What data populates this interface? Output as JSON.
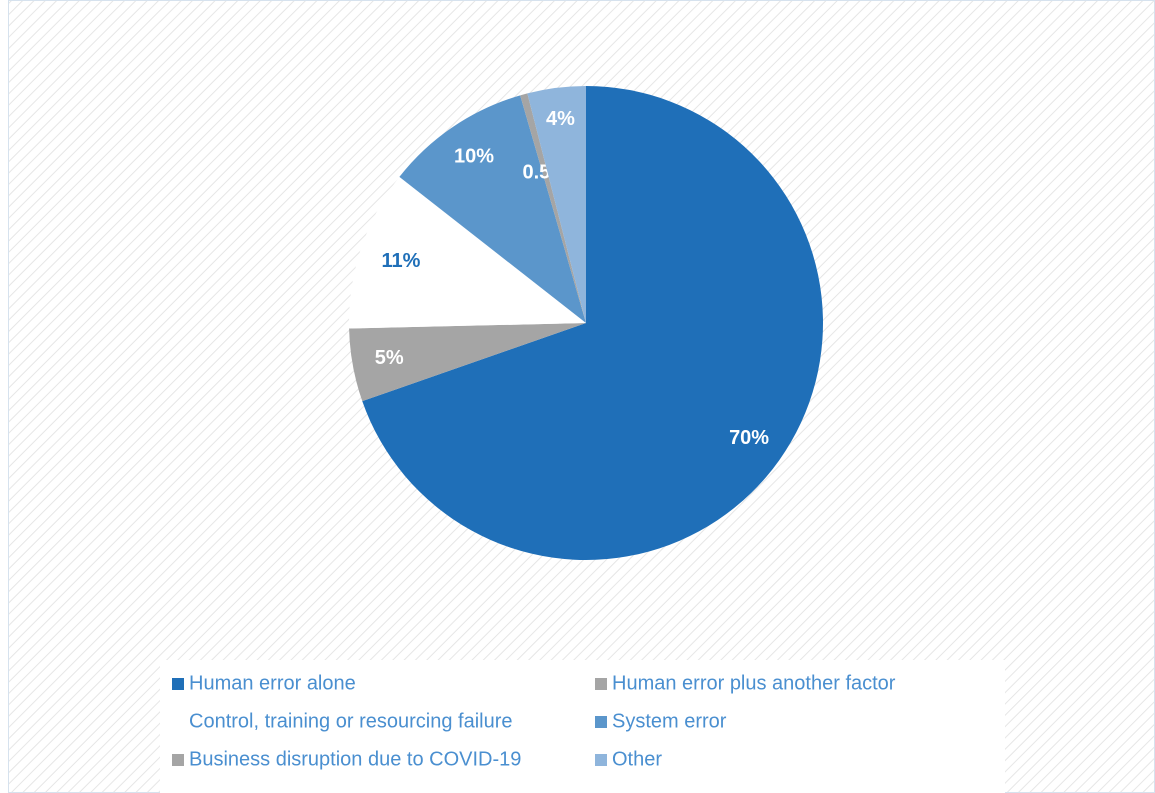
{
  "chart_data": {
    "type": "pie",
    "categories": [
      "Human error alone",
      "Human error plus another factor",
      "Control, training or resourcing failure",
      "System error",
      "Business disruption due to COVID-19",
      "Other"
    ],
    "values": [
      70,
      5,
      11,
      10,
      0.5,
      4
    ],
    "value_labels": [
      "70%",
      "5%",
      "11%",
      "10%",
      "0.5%",
      "4%"
    ],
    "colors": [
      "#1f6fb8",
      "#a5a5a5",
      "#ffffff",
      "#5b96cb",
      "#a5a5a5",
      "#8fb5dc"
    ],
    "label_colors": [
      "#ffffff",
      "#ffffff",
      "#1f6fb8",
      "#ffffff",
      "#ffffff",
      "#ffffff"
    ]
  }
}
